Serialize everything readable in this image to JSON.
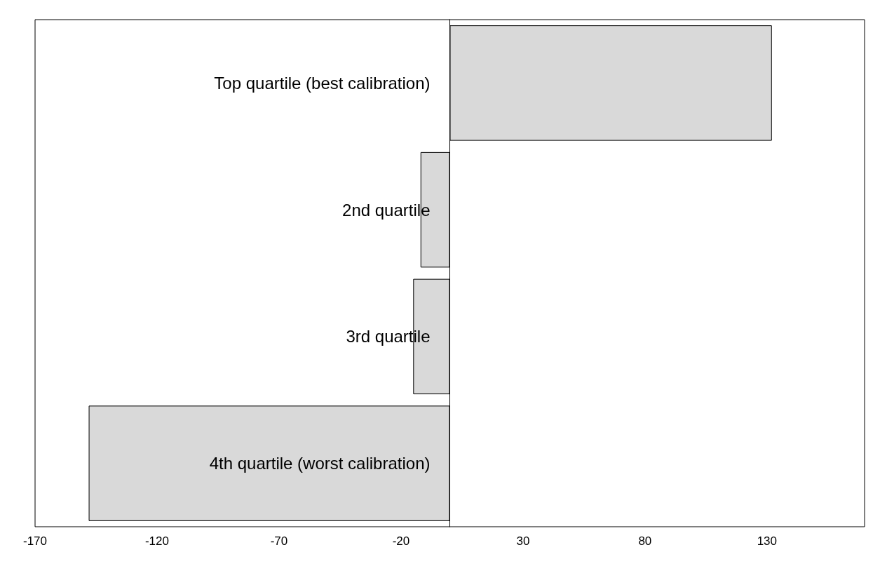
{
  "chart_data": {
    "type": "bar",
    "orientation": "horizontal",
    "categories": [
      "Top quartile (best calibration)",
      "2nd quartile",
      "3rd quartile",
      "4th quartile (worst calibration)"
    ],
    "values": [
      132,
      -12,
      -15,
      -148
    ],
    "color": "#d9d9d9",
    "xlim": [
      -170,
      170
    ],
    "xticks": [
      -170,
      -120,
      -70,
      -20,
      30,
      80,
      130
    ],
    "grid": false
  }
}
